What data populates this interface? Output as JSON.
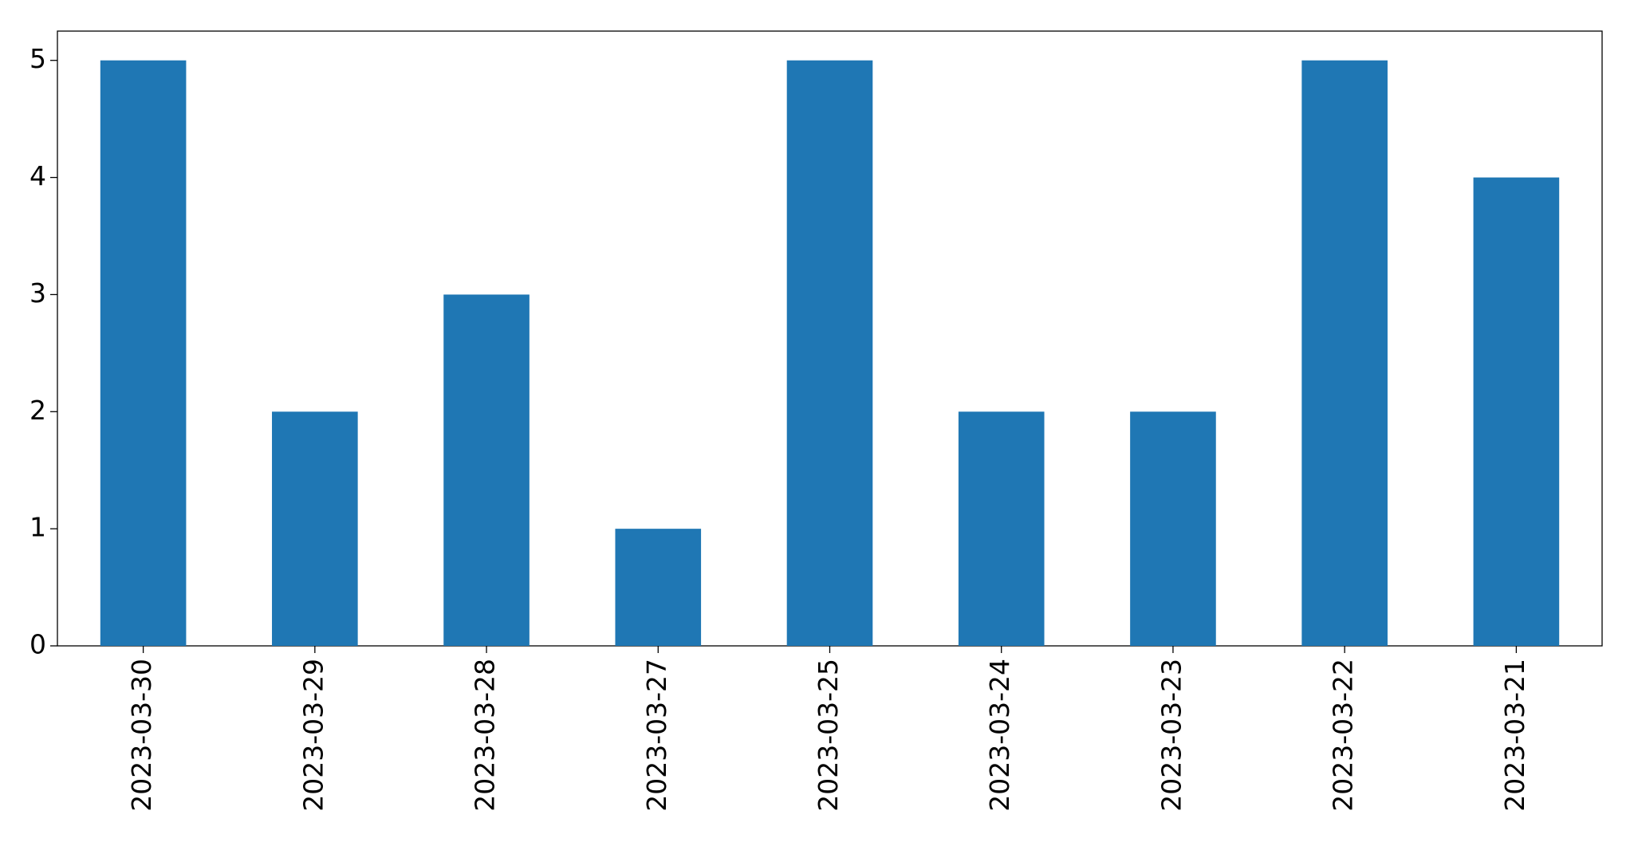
{
  "chart_data": {
    "type": "bar",
    "categories": [
      "2023-03-30",
      "2023-03-29",
      "2023-03-28",
      "2023-03-27",
      "2023-03-25",
      "2023-03-24",
      "2023-03-23",
      "2023-03-22",
      "2023-03-21"
    ],
    "values": [
      5,
      2,
      3,
      1,
      5,
      2,
      2,
      5,
      4
    ],
    "color": "#1f77b4",
    "ylim": [
      0,
      5.25
    ],
    "yticks": [
      0,
      1,
      2,
      3,
      4,
      5
    ],
    "grid": false
  }
}
